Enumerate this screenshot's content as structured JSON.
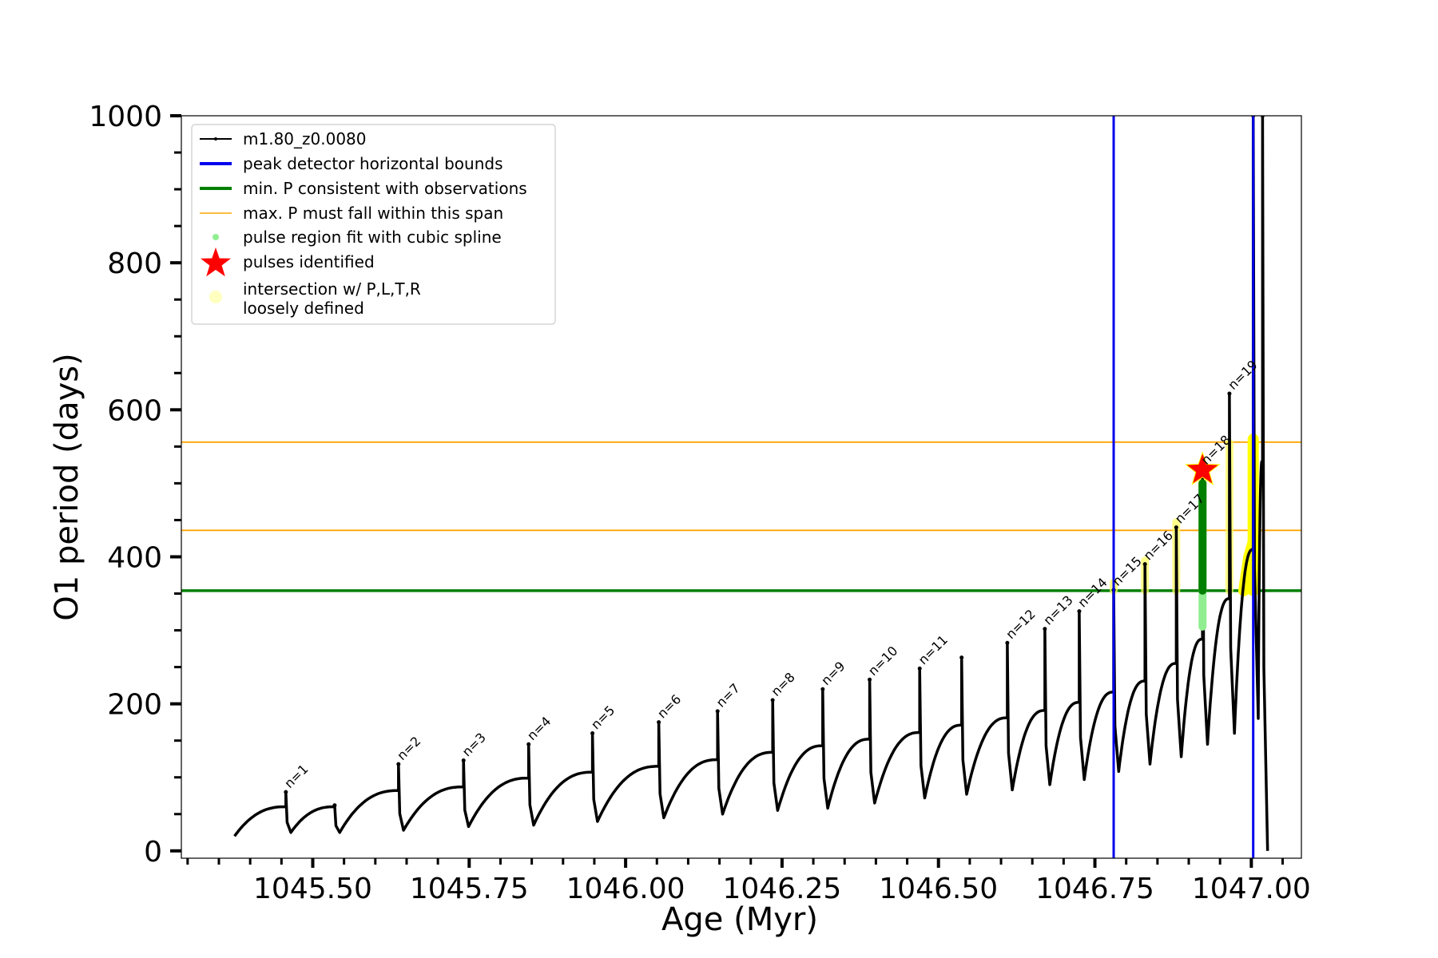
{
  "chart_data": {
    "type": "line",
    "title": "",
    "xlabel": "Age (Myr)",
    "ylabel": "O1 period (days)",
    "xlim": [
      1045.29,
      1047.08
    ],
    "ylim": [
      -10,
      1000
    ],
    "x_ticks": [
      1045.5,
      1045.75,
      1046.0,
      1046.25,
      1046.5,
      1046.75,
      1047.0
    ],
    "x_tick_labels": [
      "1045.50",
      "1045.75",
      "1046.00",
      "1046.25",
      "1046.50",
      "1046.75",
      "1047.00"
    ],
    "y_ticks": [
      0,
      200,
      400,
      600,
      800,
      1000
    ],
    "y_tick_labels": [
      "0",
      "200",
      "400",
      "600",
      "800",
      "1000"
    ],
    "grid": false,
    "legend_position": "top-left",
    "legend": [
      {
        "label": "m1.80_z0.0080",
        "color": "#000000",
        "kind": "line-dot"
      },
      {
        "label": "peak detector horizontal bounds",
        "color": "#0000ee",
        "kind": "thick-line"
      },
      {
        "label": "min. P consistent with observations",
        "color": "#007f00",
        "kind": "thick-line"
      },
      {
        "label": "max. P must fall within this span",
        "color": "#ffa500",
        "kind": "thin-line"
      },
      {
        "label": "pulse region fit with cubic spline",
        "color": "#90ee90",
        "kind": "dot"
      },
      {
        "label": "pulses identified",
        "color": "#ff0000",
        "kind": "star"
      },
      {
        "label": "intersection w/ P,L,T,R\nloosely defined",
        "color": "#ffffc0",
        "kind": "big-dot"
      }
    ],
    "series": [
      {
        "name": "m1.80_z0.0080",
        "color": "#000000",
        "start": {
          "x": 1045.375,
          "y": 20
        },
        "pulses": [
          {
            "x": 1045.457,
            "pre": 60,
            "spike": 80,
            "min": 25
          },
          {
            "x": 1045.535,
            "pre": 60,
            "spike": 62,
            "min": 25
          },
          {
            "x": 1045.637,
            "pre": 82,
            "spike": 118,
            "min": 28
          },
          {
            "x": 1045.741,
            "pre": 87,
            "spike": 123,
            "min": 33
          },
          {
            "x": 1045.845,
            "pre": 99,
            "spike": 145,
            "min": 35
          },
          {
            "x": 1045.947,
            "pre": 107,
            "spike": 160,
            "min": 40
          },
          {
            "x": 1046.053,
            "pre": 115,
            "spike": 175,
            "min": 45
          },
          {
            "x": 1046.147,
            "pre": 124,
            "spike": 190,
            "min": 50
          },
          {
            "x": 1046.235,
            "pre": 134,
            "spike": 205,
            "min": 55
          },
          {
            "x": 1046.315,
            "pre": 143,
            "spike": 220,
            "min": 58
          },
          {
            "x": 1046.39,
            "pre": 152,
            "spike": 233,
            "min": 65
          },
          {
            "x": 1046.47,
            "pre": 161,
            "spike": 248,
            "min": 72
          },
          {
            "x": 1046.537,
            "pre": 171,
            "spike": 263,
            "min": 77
          },
          {
            "x": 1046.61,
            "pre": 181,
            "spike": 283,
            "min": 83
          },
          {
            "x": 1046.67,
            "pre": 191,
            "spike": 302,
            "min": 90
          },
          {
            "x": 1046.725,
            "pre": 202,
            "spike": 326,
            "min": 97
          },
          {
            "x": 1046.78,
            "pre": 216,
            "spike": 355,
            "min": 108
          },
          {
            "x": 1046.83,
            "pre": 231,
            "spike": 390,
            "min": 118
          },
          {
            "x": 1046.88,
            "pre": 255,
            "spike": 440,
            "min": 128
          },
          {
            "x": 1046.922,
            "pre": 288,
            "spike": 520,
            "min": 145
          },
          {
            "x": 1046.965,
            "pre": 343,
            "spike": 622,
            "min": 160
          },
          {
            "x": 1047.003,
            "pre": 410,
            "spike": 1000,
            "min": 180
          },
          {
            "x": 1047.018,
            "pre": 530,
            "spike": 1000,
            "min": 0
          }
        ]
      }
    ],
    "pulse_labels": [
      {
        "text": "n=1",
        "x": 1045.457
      },
      {
        "text": "n=2",
        "x": 1045.637
      },
      {
        "text": "n=3",
        "x": 1045.741
      },
      {
        "text": "n=4",
        "x": 1045.845
      },
      {
        "text": "n=5",
        "x": 1045.947
      },
      {
        "text": "n=6",
        "x": 1046.053
      },
      {
        "text": "n=7",
        "x": 1046.147
      },
      {
        "text": "n=8",
        "x": 1046.235
      },
      {
        "text": "n=9",
        "x": 1046.315
      },
      {
        "text": "n=10",
        "x": 1046.39
      },
      {
        "text": "n=11",
        "x": 1046.47
      },
      {
        "text": "n=12",
        "x": 1046.61
      },
      {
        "text": "n=13",
        "x": 1046.67
      },
      {
        "text": "n=14",
        "x": 1046.725
      },
      {
        "text": "n=15",
        "x": 1046.78
      },
      {
        "text": "n=16",
        "x": 1046.83
      },
      {
        "text": "n=17",
        "x": 1046.88
      },
      {
        "text": "n=18",
        "x": 1046.922
      },
      {
        "text": "n=19",
        "x": 1046.965
      }
    ],
    "vertical_lines": [
      {
        "x": 1046.78,
        "color": "#0000ee"
      },
      {
        "x": 1047.003,
        "color": "#0000ee"
      }
    ],
    "horizontal_lines": [
      {
        "y": 354,
        "color": "#007f00"
      },
      {
        "y": 436,
        "color": "#ffa500"
      },
      {
        "y": 556,
        "color": "#ffa500"
      }
    ],
    "spline_region": {
      "x": 1046.922,
      "y_range": [
        305,
        500
      ],
      "color": "#90ee90"
    },
    "identified_pulse": {
      "x": 1046.922,
      "y": 518,
      "color": "#ff0000"
    },
    "loosely_defined_regions": [
      {
        "x": 1046.78,
        "y_range": [
          354,
          365
        ]
      },
      {
        "x": 1046.83,
        "y_range": [
          354,
          395
        ]
      },
      {
        "x": 1046.88,
        "y_range": [
          354,
          447
        ]
      },
      {
        "x": 1046.922,
        "y_range": [
          354,
          520
        ]
      },
      {
        "x": 1046.965,
        "y_range": [
          354,
          555
        ]
      },
      {
        "x": 1047.003,
        "y_range": [
          354,
          560
        ]
      }
    ],
    "green_band": {
      "x": 1046.922,
      "y_range": [
        354,
        500
      ],
      "color": "#007f00"
    }
  }
}
